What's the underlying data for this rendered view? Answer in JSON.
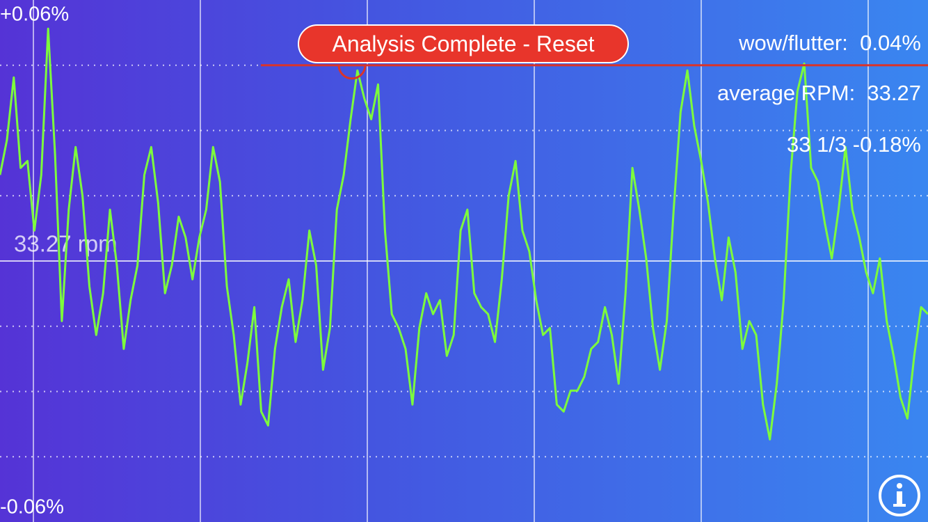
{
  "chart_data": {
    "type": "line",
    "ylim": [
      -0.06,
      0.06
    ],
    "yticks": [
      {
        "value": 0.06,
        "label": "+0.06%"
      },
      {
        "value": 0,
        "label": "33.27 rpm"
      },
      {
        "value": -0.06,
        "label": "-0.06%"
      }
    ],
    "ygrid": [
      0.045,
      0.03,
      0.015,
      -0.015,
      -0.03,
      -0.045
    ],
    "peak": 0.045,
    "reset_button": "Analysis Complete - Reset",
    "stats": [
      "wow/flutter:  0.04%",
      "average RPM:  33.27",
      "33 1/3 -0.18%"
    ],
    "series": [
      {
        "color": "#7dfc3c",
        "values": [
          0.0198,
          0.0278,
          0.0422,
          0.0214,
          0.023,
          0.007,
          0.0198,
          0.0534,
          0.0246,
          -0.0138,
          0.0118,
          0.0262,
          0.015,
          -0.0058,
          -0.017,
          -0.0074,
          0.0118,
          -0.001,
          -0.0202,
          -0.009,
          -0.001,
          0.0198,
          0.0262,
          0.0134,
          -0.0074,
          -0.001,
          0.0102,
          0.0054,
          -0.0042,
          0.0054,
          0.0118,
          0.0262,
          0.0182,
          -0.0058,
          -0.017,
          -0.033,
          -0.0234,
          -0.0106,
          -0.0346,
          -0.0378,
          -0.0202,
          -0.0106,
          -0.0042,
          -0.0186,
          -0.009,
          0.007,
          -0.001,
          -0.025,
          -0.0154,
          0.0118,
          0.0198,
          0.0326,
          0.0438,
          0.0374,
          0.0326,
          0.0406,
          0.007,
          -0.0122,
          -0.0154,
          -0.0202,
          -0.033,
          -0.0154,
          -0.0074,
          -0.0122,
          -0.009,
          -0.0218,
          -0.017,
          0.007,
          0.0118,
          -0.0074,
          -0.0106,
          -0.0122,
          -0.0186,
          -0.0042,
          0.015,
          0.023,
          0.007,
          0.0022,
          -0.009,
          -0.017,
          -0.0154,
          -0.033,
          -0.0346,
          -0.0298,
          -0.0298,
          -0.0266,
          -0.0202,
          -0.0186,
          -0.0106,
          -0.017,
          -0.0282,
          -0.0074,
          0.0214,
          0.0118,
          0.0006,
          -0.0154,
          -0.025,
          -0.0138,
          0.0118,
          0.0342,
          0.0438,
          0.031,
          0.023,
          0.0134,
          0.0006,
          -0.009,
          0.0054,
          -0.0026,
          -0.0202,
          -0.0138,
          -0.017,
          -0.033,
          -0.041,
          -0.0282,
          -0.009,
          0.0198,
          0.039,
          0.0454,
          0.0214,
          0.0182,
          0.0086,
          0.0006,
          0.0118,
          0.0262,
          0.0118,
          0.0054,
          -0.0026,
          -0.0074,
          0.0006,
          -0.0138,
          -0.0218,
          -0.0314,
          -0.0362,
          -0.0218,
          -0.0106,
          -0.0122
        ]
      }
    ]
  }
}
